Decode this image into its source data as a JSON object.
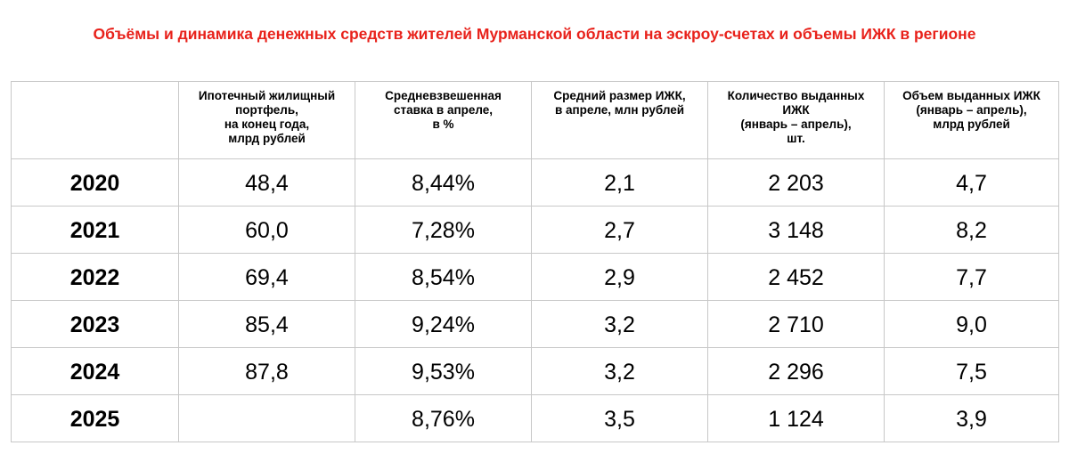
{
  "title": "Объёмы и динамика денежных средств жителей Мурманской области на эскроу-счетах и объемы ИЖК в регионе",
  "colors": {
    "title": "#e8221b",
    "grid": "#c8c8c8",
    "text": "#000000"
  },
  "table": {
    "headers": [
      "",
      "Ипотечный жилищный\nпортфель,\nна конец года,\nмлрд рублей",
      "Средневзвешенная\nставка в апреле,\nв %",
      "Средний размер ИЖК,\nв апреле, млн рублей",
      "Количество выданных\nИЖК\n(январь – апрель),\nшт.",
      "Объем выданных ИЖК\n(январь – апрель),\nмлрд рублей"
    ],
    "rows": [
      [
        "2020",
        "48,4",
        "8,44%",
        "2,1",
        "2 203",
        "4,7"
      ],
      [
        "2021",
        "60,0",
        "7,28%",
        "2,7",
        "3 148",
        "8,2"
      ],
      [
        "2022",
        "69,4",
        "8,54%",
        "2,9",
        "2 452",
        "7,7"
      ],
      [
        "2023",
        "85,4",
        "9,24%",
        "3,2",
        "2 710",
        "9,0"
      ],
      [
        "2024",
        "87,8",
        "9,53%",
        "3,2",
        "2 296",
        "7,5"
      ],
      [
        "2025",
        "",
        "8,76%",
        "3,5",
        "1 124",
        "3,9"
      ]
    ]
  }
}
